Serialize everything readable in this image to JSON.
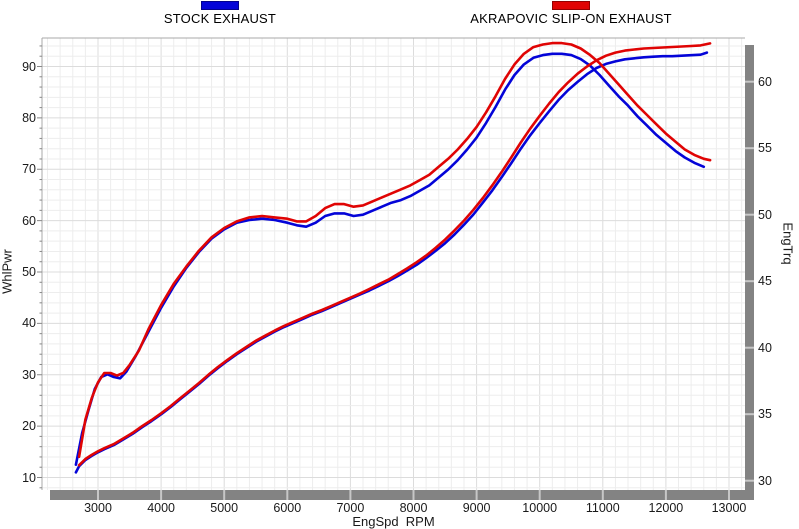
{
  "legend": {
    "items": [
      {
        "label": "STOCK EXHAUST",
        "color": "#0404d8"
      },
      {
        "label": "AKRAPOVIC SLIP-ON EXHAUST",
        "color": "#e00404"
      }
    ]
  },
  "axes": {
    "x": {
      "title": "EngSpd  RPM",
      "ticks": [
        3000,
        4000,
        5000,
        6000,
        7000,
        8000,
        9000,
        10000,
        11000,
        12000,
        13000
      ],
      "range": [
        2112,
        13253
      ],
      "minor_step": 200
    },
    "y_left": {
      "title": "WhlPwr",
      "ticks": [
        10,
        20,
        30,
        40,
        50,
        60,
        70,
        80,
        90
      ],
      "range": [
        7.6,
        95.5
      ],
      "minor_step": 2
    },
    "y_right": {
      "title": "EngTrq",
      "ticks": [
        30,
        35,
        40,
        45,
        50,
        55,
        60
      ],
      "range": [
        29.3,
        63.3
      ]
    }
  },
  "chart_data": {
    "type": "line",
    "grid": true,
    "legend_position": "top",
    "xlabel": "EngSpd RPM",
    "ylabel_left": "WhlPwr",
    "ylabel_right": "EngTrq",
    "series": [
      {
        "name": "Stock Exhaust - WhlPwr",
        "axis": "left",
        "color": "#0404d8",
        "points": [
          [
            2650,
            11.0
          ],
          [
            2700,
            12.2
          ],
          [
            2800,
            13.4
          ],
          [
            2900,
            14.2
          ],
          [
            3000,
            14.9
          ],
          [
            3100,
            15.5
          ],
          [
            3250,
            16.3
          ],
          [
            3400,
            17.4
          ],
          [
            3550,
            18.5
          ],
          [
            3700,
            19.8
          ],
          [
            3850,
            21.0
          ],
          [
            4000,
            22.3
          ],
          [
            4150,
            23.7
          ],
          [
            4300,
            25.2
          ],
          [
            4450,
            26.7
          ],
          [
            4600,
            28.2
          ],
          [
            4750,
            29.8
          ],
          [
            4900,
            31.3
          ],
          [
            5050,
            32.7
          ],
          [
            5200,
            34.0
          ],
          [
            5350,
            35.2
          ],
          [
            5500,
            36.4
          ],
          [
            5650,
            37.4
          ],
          [
            5800,
            38.4
          ],
          [
            5950,
            39.3
          ],
          [
            6100,
            40.1
          ],
          [
            6250,
            40.9
          ],
          [
            6400,
            41.7
          ],
          [
            6550,
            42.4
          ],
          [
            6700,
            43.2
          ],
          [
            6850,
            44.0
          ],
          [
            7000,
            44.8
          ],
          [
            7150,
            45.6
          ],
          [
            7300,
            46.4
          ],
          [
            7450,
            47.3
          ],
          [
            7600,
            48.2
          ],
          [
            7750,
            49.2
          ],
          [
            7900,
            50.3
          ],
          [
            8050,
            51.4
          ],
          [
            8200,
            52.7
          ],
          [
            8350,
            54.1
          ],
          [
            8500,
            55.6
          ],
          [
            8650,
            57.3
          ],
          [
            8800,
            59.2
          ],
          [
            8950,
            61.2
          ],
          [
            9100,
            63.5
          ],
          [
            9250,
            65.9
          ],
          [
            9400,
            68.5
          ],
          [
            9550,
            71.2
          ],
          [
            9700,
            74.0
          ],
          [
            9850,
            76.6
          ],
          [
            10000,
            79.0
          ],
          [
            10150,
            81.3
          ],
          [
            10300,
            83.5
          ],
          [
            10450,
            85.4
          ],
          [
            10600,
            87.0
          ],
          [
            10750,
            88.5
          ],
          [
            10900,
            89.7
          ],
          [
            11050,
            90.5
          ],
          [
            11200,
            91.0
          ],
          [
            11350,
            91.4
          ],
          [
            11500,
            91.6
          ],
          [
            11650,
            91.8
          ],
          [
            11800,
            91.9
          ],
          [
            11950,
            92.0
          ],
          [
            12100,
            92.0
          ],
          [
            12250,
            92.1
          ],
          [
            12400,
            92.2
          ],
          [
            12550,
            92.3
          ],
          [
            12650,
            92.7
          ]
        ]
      },
      {
        "name": "Akrapovic Slip-On Exhaust - WhlPwr",
        "axis": "left",
        "color": "#e00404",
        "points": [
          [
            2700,
            12.4
          ],
          [
            2800,
            13.6
          ],
          [
            2900,
            14.4
          ],
          [
            3000,
            15.1
          ],
          [
            3100,
            15.7
          ],
          [
            3250,
            16.5
          ],
          [
            3400,
            17.6
          ],
          [
            3550,
            18.7
          ],
          [
            3700,
            20.0
          ],
          [
            3850,
            21.2
          ],
          [
            4000,
            22.5
          ],
          [
            4150,
            23.9
          ],
          [
            4300,
            25.4
          ],
          [
            4450,
            26.9
          ],
          [
            4600,
            28.4
          ],
          [
            4750,
            30.0
          ],
          [
            4900,
            31.5
          ],
          [
            5050,
            32.9
          ],
          [
            5200,
            34.2
          ],
          [
            5350,
            35.4
          ],
          [
            5500,
            36.6
          ],
          [
            5650,
            37.6
          ],
          [
            5800,
            38.6
          ],
          [
            5950,
            39.5
          ],
          [
            6100,
            40.3
          ],
          [
            6250,
            41.1
          ],
          [
            6400,
            41.9
          ],
          [
            6550,
            42.6
          ],
          [
            6700,
            43.4
          ],
          [
            6850,
            44.2
          ],
          [
            7000,
            45.0
          ],
          [
            7150,
            45.8
          ],
          [
            7300,
            46.7
          ],
          [
            7450,
            47.6
          ],
          [
            7600,
            48.5
          ],
          [
            7750,
            49.6
          ],
          [
            7900,
            50.7
          ],
          [
            8050,
            51.9
          ],
          [
            8200,
            53.2
          ],
          [
            8350,
            54.7
          ],
          [
            8500,
            56.3
          ],
          [
            8650,
            58.1
          ],
          [
            8800,
            60.0
          ],
          [
            8950,
            62.1
          ],
          [
            9100,
            64.4
          ],
          [
            9250,
            66.9
          ],
          [
            9400,
            69.5
          ],
          [
            9550,
            72.3
          ],
          [
            9700,
            75.2
          ],
          [
            9850,
            77.9
          ],
          [
            10000,
            80.4
          ],
          [
            10150,
            82.8
          ],
          [
            10300,
            85.0
          ],
          [
            10450,
            86.9
          ],
          [
            10600,
            88.6
          ],
          [
            10750,
            90.0
          ],
          [
            10900,
            91.2
          ],
          [
            11050,
            92.1
          ],
          [
            11200,
            92.7
          ],
          [
            11350,
            93.1
          ],
          [
            11500,
            93.3
          ],
          [
            11650,
            93.5
          ],
          [
            11800,
            93.6
          ],
          [
            11950,
            93.7
          ],
          [
            12100,
            93.8
          ],
          [
            12250,
            93.9
          ],
          [
            12400,
            94.0
          ],
          [
            12550,
            94.1
          ],
          [
            12700,
            94.5
          ]
        ]
      },
      {
        "name": "Stock Exhaust - EngTrq",
        "axis": "right",
        "color": "#0404d8",
        "points": [
          [
            2650,
            31.2
          ],
          [
            2750,
            33.6
          ],
          [
            2850,
            35.3
          ],
          [
            2950,
            36.9
          ],
          [
            3050,
            37.8
          ],
          [
            3150,
            38.0
          ],
          [
            3250,
            37.8
          ],
          [
            3350,
            37.7
          ],
          [
            3450,
            38.2
          ],
          [
            3600,
            39.4
          ],
          [
            3800,
            41.2
          ],
          [
            4000,
            43.0
          ],
          [
            4200,
            44.6
          ],
          [
            4400,
            46.0
          ],
          [
            4600,
            47.2
          ],
          [
            4800,
            48.2
          ],
          [
            5000,
            48.9
          ],
          [
            5200,
            49.4
          ],
          [
            5400,
            49.6
          ],
          [
            5600,
            49.7
          ],
          [
            5800,
            49.6
          ],
          [
            6000,
            49.4
          ],
          [
            6150,
            49.2
          ],
          [
            6300,
            49.1
          ],
          [
            6450,
            49.4
          ],
          [
            6600,
            49.9
          ],
          [
            6750,
            50.1
          ],
          [
            6900,
            50.1
          ],
          [
            7050,
            49.9
          ],
          [
            7200,
            50.0
          ],
          [
            7350,
            50.3
          ],
          [
            7500,
            50.6
          ],
          [
            7650,
            50.9
          ],
          [
            7800,
            51.1
          ],
          [
            7950,
            51.4
          ],
          [
            8100,
            51.8
          ],
          [
            8250,
            52.2
          ],
          [
            8400,
            52.8
          ],
          [
            8550,
            53.4
          ],
          [
            8700,
            54.1
          ],
          [
            8850,
            54.9
          ],
          [
            9000,
            55.8
          ],
          [
            9150,
            56.9
          ],
          [
            9300,
            58.1
          ],
          [
            9450,
            59.4
          ],
          [
            9600,
            60.5
          ],
          [
            9750,
            61.3
          ],
          [
            9900,
            61.8
          ],
          [
            10050,
            62.0
          ],
          [
            10200,
            62.1
          ],
          [
            10350,
            62.1
          ],
          [
            10500,
            62.0
          ],
          [
            10650,
            61.7
          ],
          [
            10800,
            61.2
          ],
          [
            10950,
            60.5
          ],
          [
            11100,
            59.7
          ],
          [
            11250,
            58.9
          ],
          [
            11400,
            58.2
          ],
          [
            11550,
            57.4
          ],
          [
            11700,
            56.7
          ],
          [
            11850,
            56.0
          ],
          [
            12000,
            55.4
          ],
          [
            12150,
            54.8
          ],
          [
            12300,
            54.3
          ],
          [
            12450,
            53.9
          ],
          [
            12600,
            53.6
          ]
        ]
      },
      {
        "name": "Akrapovic Slip-On Exhaust - EngTrq",
        "axis": "right",
        "color": "#e00404",
        "points": [
          [
            2700,
            31.8
          ],
          [
            2800,
            34.6
          ],
          [
            2900,
            36.2
          ],
          [
            3000,
            37.4
          ],
          [
            3100,
            38.1
          ],
          [
            3200,
            38.1
          ],
          [
            3300,
            37.9
          ],
          [
            3400,
            38.1
          ],
          [
            3500,
            38.7
          ],
          [
            3650,
            39.8
          ],
          [
            3800,
            41.4
          ],
          [
            4000,
            43.2
          ],
          [
            4200,
            44.8
          ],
          [
            4400,
            46.1
          ],
          [
            4600,
            47.3
          ],
          [
            4800,
            48.3
          ],
          [
            5000,
            49.0
          ],
          [
            5200,
            49.5
          ],
          [
            5400,
            49.8
          ],
          [
            5600,
            49.9
          ],
          [
            5800,
            49.8
          ],
          [
            6000,
            49.7
          ],
          [
            6150,
            49.5
          ],
          [
            6300,
            49.5
          ],
          [
            6450,
            49.9
          ],
          [
            6600,
            50.5
          ],
          [
            6750,
            50.8
          ],
          [
            6900,
            50.8
          ],
          [
            7050,
            50.6
          ],
          [
            7200,
            50.7
          ],
          [
            7350,
            51.0
          ],
          [
            7500,
            51.3
          ],
          [
            7650,
            51.6
          ],
          [
            7800,
            51.9
          ],
          [
            7950,
            52.2
          ],
          [
            8100,
            52.6
          ],
          [
            8250,
            53.0
          ],
          [
            8400,
            53.6
          ],
          [
            8550,
            54.2
          ],
          [
            8700,
            54.9
          ],
          [
            8850,
            55.7
          ],
          [
            9000,
            56.6
          ],
          [
            9150,
            57.7
          ],
          [
            9300,
            58.9
          ],
          [
            9450,
            60.2
          ],
          [
            9600,
            61.3
          ],
          [
            9750,
            62.1
          ],
          [
            9900,
            62.6
          ],
          [
            10050,
            62.8
          ],
          [
            10200,
            62.9
          ],
          [
            10350,
            62.9
          ],
          [
            10500,
            62.8
          ],
          [
            10650,
            62.5
          ],
          [
            10800,
            62.0
          ],
          [
            10950,
            61.4
          ],
          [
            11100,
            60.6
          ],
          [
            11250,
            59.8
          ],
          [
            11400,
            59.0
          ],
          [
            11550,
            58.2
          ],
          [
            11700,
            57.5
          ],
          [
            11850,
            56.8
          ],
          [
            12000,
            56.1
          ],
          [
            12150,
            55.5
          ],
          [
            12300,
            54.9
          ],
          [
            12450,
            54.5
          ],
          [
            12600,
            54.2
          ],
          [
            12700,
            54.1
          ]
        ]
      }
    ]
  }
}
